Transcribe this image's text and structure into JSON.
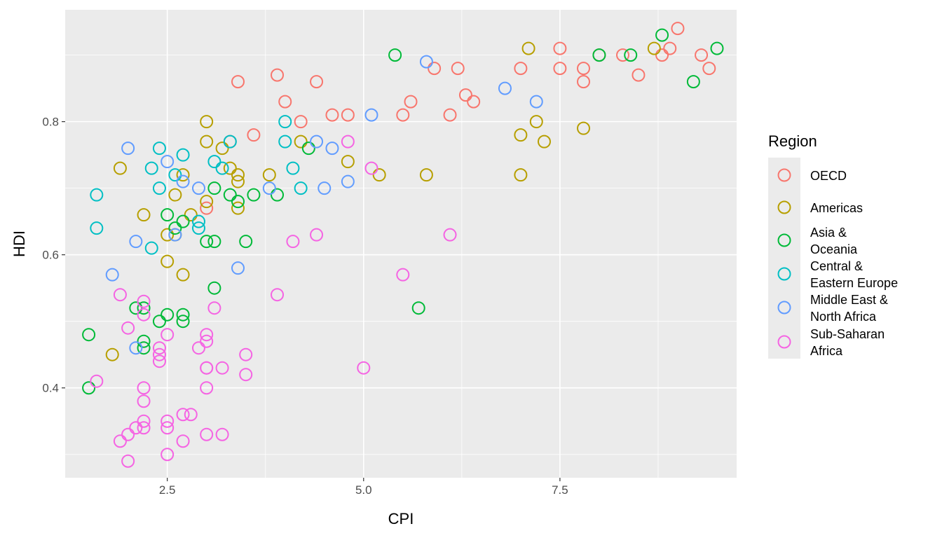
{
  "chart_data": {
    "type": "scatter",
    "title": "",
    "xlabel": "CPI",
    "ylabel": "HDI",
    "xlim": [
      1.2,
      9.75
    ],
    "ylim": [
      0.265,
      0.968
    ],
    "x_ticks": [
      2.5,
      5.0,
      7.5
    ],
    "x_tick_labels": [
      "2.5",
      "5.0",
      "7.5"
    ],
    "x_minor_ticks": [
      3.75,
      6.25,
      8.75
    ],
    "y_ticks": [
      0.4,
      0.6,
      0.8
    ],
    "y_tick_labels": [
      "0.4",
      "0.6",
      "0.8"
    ],
    "y_minor_ticks": [
      0.3,
      0.5,
      0.7,
      0.9
    ],
    "grid": true,
    "legend": {
      "title": "Region",
      "placement": "right"
    },
    "series": [
      {
        "name": "OECD",
        "label_lines": [
          "OECD"
        ],
        "color": "#F8766D",
        "points": [
          [
            3.3,
            0.77
          ],
          [
            3.4,
            0.86
          ],
          [
            3.6,
            0.78
          ],
          [
            3.9,
            0.87
          ],
          [
            4.0,
            0.83
          ],
          [
            4.2,
            0.8
          ],
          [
            4.4,
            0.86
          ],
          [
            4.6,
            0.81
          ],
          [
            4.8,
            0.81
          ],
          [
            5.5,
            0.81
          ],
          [
            5.6,
            0.83
          ],
          [
            5.9,
            0.88
          ],
          [
            6.1,
            0.81
          ],
          [
            6.2,
            0.88
          ],
          [
            6.3,
            0.84
          ],
          [
            6.4,
            0.83
          ],
          [
            7.0,
            0.88
          ],
          [
            7.5,
            0.91
          ],
          [
            7.5,
            0.88
          ],
          [
            7.8,
            0.88
          ],
          [
            7.8,
            0.86
          ],
          [
            8.0,
            0.9
          ],
          [
            8.3,
            0.9
          ],
          [
            8.5,
            0.87
          ],
          [
            8.8,
            0.9
          ],
          [
            8.9,
            0.91
          ],
          [
            9.0,
            0.94
          ],
          [
            9.3,
            0.9
          ],
          [
            9.4,
            0.88
          ],
          [
            3.0,
            0.67
          ]
        ]
      },
      {
        "name": "Americas",
        "label_lines": [
          "Americas"
        ],
        "color": "#B79F00",
        "points": [
          [
            1.9,
            0.73
          ],
          [
            1.8,
            0.45
          ],
          [
            2.2,
            0.66
          ],
          [
            2.5,
            0.63
          ],
          [
            2.5,
            0.59
          ],
          [
            2.6,
            0.69
          ],
          [
            2.6,
            0.63
          ],
          [
            2.7,
            0.72
          ],
          [
            2.7,
            0.57
          ],
          [
            2.8,
            0.66
          ],
          [
            3.0,
            0.8
          ],
          [
            3.0,
            0.77
          ],
          [
            3.0,
            0.68
          ],
          [
            3.2,
            0.76
          ],
          [
            3.3,
            0.73
          ],
          [
            3.4,
            0.72
          ],
          [
            3.4,
            0.71
          ],
          [
            3.4,
            0.67
          ],
          [
            3.8,
            0.72
          ],
          [
            4.2,
            0.77
          ],
          [
            4.8,
            0.74
          ],
          [
            5.2,
            0.72
          ],
          [
            5.8,
            0.72
          ],
          [
            7.0,
            0.78
          ],
          [
            7.0,
            0.72
          ],
          [
            7.1,
            0.91
          ],
          [
            7.2,
            0.8
          ],
          [
            7.3,
            0.77
          ],
          [
            7.8,
            0.79
          ],
          [
            8.7,
            0.91
          ]
        ]
      },
      {
        "name": "Asia & Oceania",
        "label_lines": [
          "Asia &",
          "Oceania"
        ],
        "color": "#00BA38",
        "points": [
          [
            1.5,
            0.48
          ],
          [
            1.5,
            0.4
          ],
          [
            2.1,
            0.52
          ],
          [
            2.2,
            0.52
          ],
          [
            2.2,
            0.46
          ],
          [
            2.2,
            0.47
          ],
          [
            2.4,
            0.5
          ],
          [
            2.5,
            0.66
          ],
          [
            2.5,
            0.51
          ],
          [
            2.6,
            0.64
          ],
          [
            2.7,
            0.65
          ],
          [
            2.7,
            0.51
          ],
          [
            2.7,
            0.5
          ],
          [
            3.0,
            0.62
          ],
          [
            3.1,
            0.7
          ],
          [
            3.1,
            0.62
          ],
          [
            3.1,
            0.55
          ],
          [
            3.3,
            0.69
          ],
          [
            3.4,
            0.68
          ],
          [
            3.5,
            0.62
          ],
          [
            3.6,
            0.69
          ],
          [
            3.9,
            0.69
          ],
          [
            4.3,
            0.76
          ],
          [
            5.4,
            0.9
          ],
          [
            5.7,
            0.52
          ],
          [
            8.0,
            0.9
          ],
          [
            8.4,
            0.9
          ],
          [
            8.8,
            0.93
          ],
          [
            9.2,
            0.86
          ],
          [
            9.5,
            0.91
          ]
        ]
      },
      {
        "name": "Central & Eastern Europe",
        "label_lines": [
          "Central &",
          "Eastern Europe"
        ],
        "color": "#00BFC4",
        "points": [
          [
            1.6,
            0.69
          ],
          [
            1.6,
            0.64
          ],
          [
            2.3,
            0.73
          ],
          [
            2.3,
            0.61
          ],
          [
            2.4,
            0.76
          ],
          [
            2.4,
            0.7
          ],
          [
            2.6,
            0.72
          ],
          [
            2.7,
            0.75
          ],
          [
            2.9,
            0.64
          ],
          [
            2.9,
            0.65
          ],
          [
            3.1,
            0.74
          ],
          [
            3.2,
            0.73
          ],
          [
            3.3,
            0.77
          ],
          [
            4.0,
            0.8
          ],
          [
            4.0,
            0.77
          ],
          [
            4.1,
            0.73
          ],
          [
            4.2,
            0.7
          ]
        ]
      },
      {
        "name": "Middle East & North Africa",
        "label_lines": [
          "Middle East &",
          "North Africa"
        ],
        "color": "#619CFF",
        "points": [
          [
            1.8,
            0.57
          ],
          [
            2.0,
            0.76
          ],
          [
            2.1,
            0.62
          ],
          [
            2.1,
            0.46
          ],
          [
            2.5,
            0.74
          ],
          [
            2.6,
            0.63
          ],
          [
            2.7,
            0.71
          ],
          [
            2.9,
            0.7
          ],
          [
            3.4,
            0.58
          ],
          [
            3.8,
            0.7
          ],
          [
            4.4,
            0.77
          ],
          [
            4.5,
            0.7
          ],
          [
            4.6,
            0.76
          ],
          [
            4.8,
            0.71
          ],
          [
            5.1,
            0.81
          ],
          [
            5.8,
            0.89
          ],
          [
            6.8,
            0.85
          ],
          [
            7.2,
            0.83
          ]
        ]
      },
      {
        "name": "Sub-Saharan Africa",
        "label_lines": [
          "Sub-Saharan",
          "Africa"
        ],
        "color": "#F564E3",
        "points": [
          [
            1.6,
            0.41
          ],
          [
            1.9,
            0.54
          ],
          [
            1.9,
            0.32
          ],
          [
            2.0,
            0.49
          ],
          [
            2.0,
            0.33
          ],
          [
            2.0,
            0.29
          ],
          [
            2.1,
            0.34
          ],
          [
            2.2,
            0.53
          ],
          [
            2.2,
            0.51
          ],
          [
            2.2,
            0.4
          ],
          [
            2.2,
            0.38
          ],
          [
            2.2,
            0.35
          ],
          [
            2.2,
            0.34
          ],
          [
            2.4,
            0.46
          ],
          [
            2.4,
            0.45
          ],
          [
            2.4,
            0.44
          ],
          [
            2.5,
            0.48
          ],
          [
            2.5,
            0.35
          ],
          [
            2.5,
            0.34
          ],
          [
            2.5,
            0.3
          ],
          [
            2.7,
            0.36
          ],
          [
            2.7,
            0.32
          ],
          [
            2.8,
            0.36
          ],
          [
            2.9,
            0.46
          ],
          [
            3.0,
            0.48
          ],
          [
            3.0,
            0.47
          ],
          [
            3.0,
            0.43
          ],
          [
            3.0,
            0.43
          ],
          [
            3.0,
            0.4
          ],
          [
            3.0,
            0.33
          ],
          [
            3.1,
            0.52
          ],
          [
            3.2,
            0.43
          ],
          [
            3.2,
            0.33
          ],
          [
            3.5,
            0.45
          ],
          [
            3.5,
            0.42
          ],
          [
            3.9,
            0.54
          ],
          [
            4.1,
            0.62
          ],
          [
            4.4,
            0.63
          ],
          [
            4.8,
            0.77
          ],
          [
            5.0,
            0.43
          ],
          [
            5.1,
            0.73
          ],
          [
            5.5,
            0.57
          ],
          [
            6.1,
            0.63
          ]
        ]
      }
    ]
  }
}
